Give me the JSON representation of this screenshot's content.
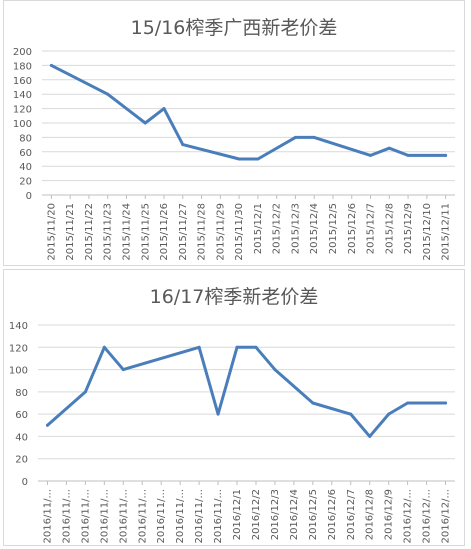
{
  "chart_data": [
    {
      "type": "line",
      "title": "15/16榨季广西新老价差",
      "xlabel": "",
      "ylabel": "",
      "ylim": [
        0,
        200
      ],
      "y_ticks": [
        "0",
        "20",
        "40",
        "60",
        "80",
        "100",
        "120",
        "140",
        "160",
        "180",
        "200"
      ],
      "grid": true,
      "legend": "none",
      "line_color": "#4a7ebb",
      "categories": [
        "2015/11/20",
        "2015/11/21",
        "2015/11/22",
        "2015/11/23",
        "2015/11/24",
        "2015/11/25",
        "2015/11/26",
        "2015/11/27",
        "2015/11/28",
        "2015/11/29",
        "2015/11/30",
        "2015/12/1",
        "2015/12/2",
        "2015/12/3",
        "2015/12/4",
        "2015/12/5",
        "2015/12/6",
        "2015/12/7",
        "2015/12/8",
        "2015/12/9",
        "2015/12/10",
        "2015/12/11"
      ],
      "points": [
        {
          "x": "2015/11/20",
          "y": 180
        },
        {
          "x": "2015/11/23",
          "y": 140
        },
        {
          "x": "2015/11/25",
          "y": 100
        },
        {
          "x": "2015/11/26",
          "y": 120
        },
        {
          "x": "2015/11/27",
          "y": 70
        },
        {
          "x": "2015/11/30",
          "y": 50
        },
        {
          "x": "2015/12/1",
          "y": 50
        },
        {
          "x": "2015/12/3",
          "y": 80
        },
        {
          "x": "2015/12/4",
          "y": 80
        },
        {
          "x": "2015/12/7",
          "y": 55
        },
        {
          "x": "2015/12/8",
          "y": 65
        },
        {
          "x": "2015/12/9",
          "y": 55
        },
        {
          "x": "2015/12/11",
          "y": 55
        }
      ]
    },
    {
      "type": "line",
      "title": "16/17榨季新老价差",
      "xlabel": "",
      "ylabel": "",
      "ylim": [
        0,
        140
      ],
      "y_ticks": [
        "0",
        "20",
        "40",
        "60",
        "80",
        "100",
        "120",
        "140"
      ],
      "grid": true,
      "legend": "none",
      "line_color": "#4a7ebb",
      "categories": [
        "2016/11/...",
        "2016/11/...",
        "2016/11/...",
        "2016/11/...",
        "2016/11/...",
        "2016/11/...",
        "2016/11/...",
        "2016/11/...",
        "2016/11/...",
        "2016/11/...",
        "2016/12/1",
        "2016/12/2",
        "2016/12/3",
        "2016/12/4",
        "2016/12/5",
        "2016/12/6",
        "2016/12/7",
        "2016/12/8",
        "2016/12/9",
        "2016/12/...",
        "2016/12/...",
        "2016/12/..."
      ],
      "points": [
        {
          "x": 0,
          "y": 50
        },
        {
          "x": 2,
          "y": 80
        },
        {
          "x": 3,
          "y": 120
        },
        {
          "x": 4,
          "y": 100
        },
        {
          "x": 8,
          "y": 120
        },
        {
          "x": 9,
          "y": 60
        },
        {
          "x": 10,
          "y": 120
        },
        {
          "x": 11,
          "y": 120
        },
        {
          "x": 12,
          "y": 100
        },
        {
          "x": 14,
          "y": 70
        },
        {
          "x": 16,
          "y": 60
        },
        {
          "x": 17,
          "y": 40
        },
        {
          "x": 18,
          "y": 60
        },
        {
          "x": 19,
          "y": 70
        },
        {
          "x": 21,
          "y": 70
        }
      ]
    }
  ]
}
